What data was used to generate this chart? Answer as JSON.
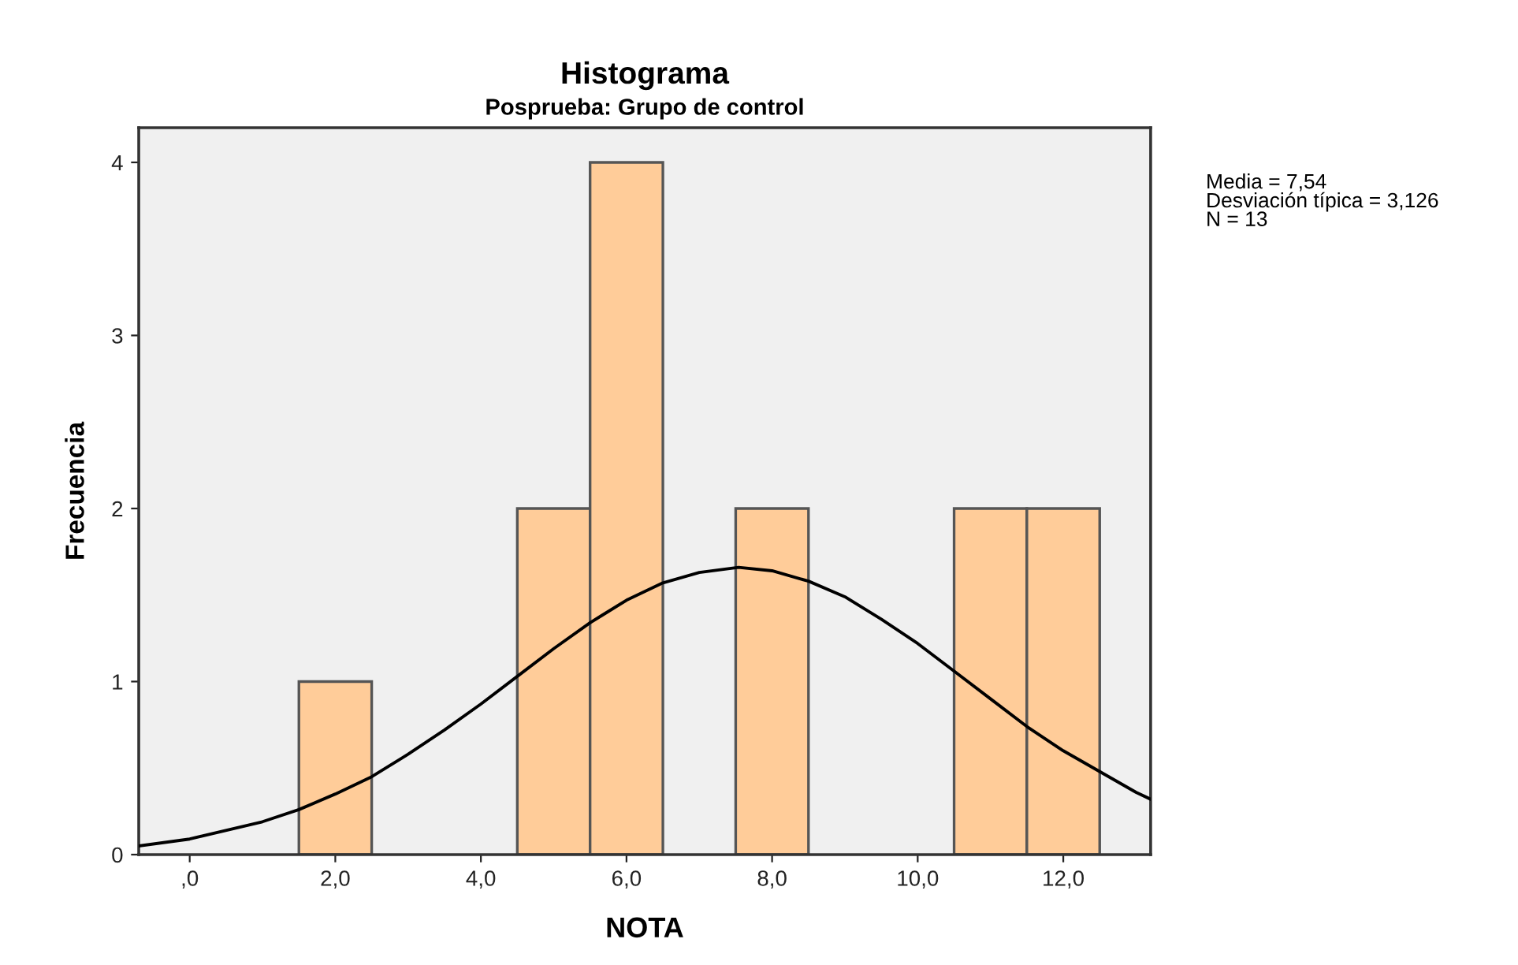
{
  "chart_data": {
    "type": "histogram",
    "title": "Histograma",
    "subtitle": "Posprueba: Grupo de control",
    "xlabel": "NOTA",
    "ylabel": "Frecuencia",
    "series": [
      {
        "type": "histogram",
        "bins": [
          1.5,
          2.5,
          3.5,
          4.5,
          5.5,
          6.5,
          7.5,
          8.5,
          9.5,
          10.5,
          11.5,
          12.5
        ],
        "values": [
          1,
          0,
          0,
          2,
          4,
          0,
          2,
          0,
          0,
          2,
          2
        ],
        "color": "#ffcc99"
      },
      {
        "type": "line",
        "x": [
          -0.7,
          0,
          1,
          1.5,
          2,
          2.5,
          3,
          3.5,
          4,
          4.5,
          5,
          5.5,
          6,
          6.5,
          7,
          7.54,
          8,
          8.5,
          9,
          9.5,
          10,
          10.5,
          11,
          11.5,
          12,
          13,
          13.2
        ],
        "values": [
          0.05,
          0.09,
          0.19,
          0.26,
          0.35,
          0.45,
          0.58,
          0.72,
          0.87,
          1.03,
          1.19,
          1.34,
          1.47,
          1.57,
          1.63,
          1.66,
          1.64,
          1.58,
          1.49,
          1.36,
          1.22,
          1.06,
          0.9,
          0.74,
          0.6,
          0.36,
          0.32
        ],
        "color": "#000000"
      }
    ],
    "xlim": [
      -0.7,
      13.2
    ],
    "ylim": [
      0,
      4.2
    ],
    "xticks": [
      {
        "value": 0,
        "label": ",0"
      },
      {
        "value": 2,
        "label": "2,0"
      },
      {
        "value": 4,
        "label": "4,0"
      },
      {
        "value": 6,
        "label": "6,0"
      },
      {
        "value": 8,
        "label": "8,0"
      },
      {
        "value": 10,
        "label": "10,0"
      },
      {
        "value": 12,
        "label": "12,0"
      }
    ],
    "yticks": [
      0,
      1,
      2,
      3,
      4
    ],
    "annotations": [
      "Media = 7,54\nDesviación típica = 3,126\nN = 13"
    ],
    "grid": false
  }
}
